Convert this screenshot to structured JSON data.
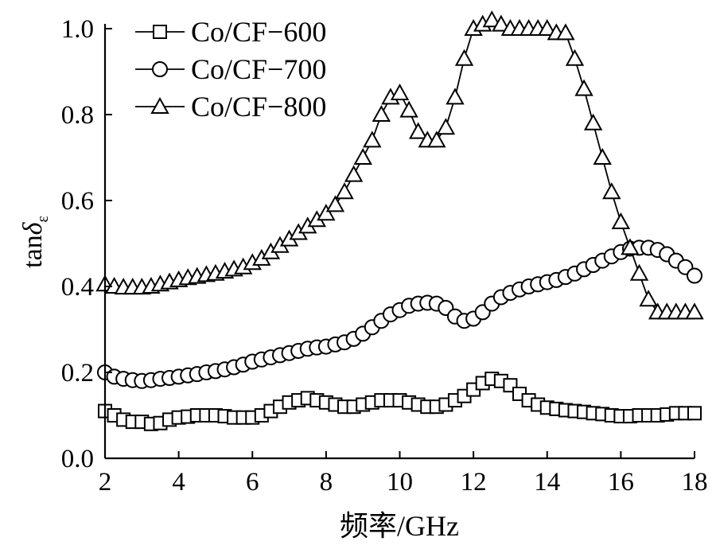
{
  "chart_data": {
    "type": "line",
    "title": "",
    "xlabel": "频率/GHz",
    "ylabel": "tanδε",
    "ylabel_main": "tan",
    "ylabel_symbol": "δ",
    "ylabel_subscript": "ε",
    "xlim": [
      2,
      18
    ],
    "ylim": [
      0.0,
      1.0
    ],
    "xticks": [
      "2",
      "4",
      "6",
      "8",
      "10",
      "12",
      "14",
      "16",
      "18"
    ],
    "yticks": [
      "0.0",
      "0.2",
      "0.4",
      "0.6",
      "0.8",
      "1.0"
    ],
    "grid": false,
    "legend_position": "top-left",
    "series": [
      {
        "name": "Co/CF−600",
        "marker": "square",
        "x": [
          2,
          2.25,
          2.5,
          2.75,
          3,
          3.25,
          3.5,
          3.75,
          4,
          4.25,
          4.5,
          4.75,
          5,
          5.25,
          5.5,
          5.75,
          6,
          6.25,
          6.5,
          6.75,
          7,
          7.25,
          7.5,
          7.75,
          8,
          8.25,
          8.5,
          8.75,
          9,
          9.25,
          9.5,
          9.75,
          10,
          10.25,
          10.5,
          10.75,
          11,
          11.25,
          11.5,
          11.75,
          12,
          12.25,
          12.5,
          12.75,
          13,
          13.25,
          13.5,
          13.75,
          14,
          14.25,
          14.5,
          14.75,
          15,
          15.25,
          15.5,
          15.75,
          16,
          16.25,
          16.5,
          16.75,
          17,
          17.25,
          17.5,
          17.75,
          18
        ],
        "y": [
          0.11,
          0.1,
          0.09,
          0.085,
          0.085,
          0.08,
          0.082,
          0.09,
          0.095,
          0.097,
          0.1,
          0.1,
          0.1,
          0.098,
          0.095,
          0.095,
          0.095,
          0.1,
          0.11,
          0.12,
          0.13,
          0.135,
          0.14,
          0.135,
          0.13,
          0.125,
          0.12,
          0.12,
          0.125,
          0.13,
          0.135,
          0.135,
          0.135,
          0.13,
          0.125,
          0.12,
          0.12,
          0.125,
          0.135,
          0.145,
          0.16,
          0.175,
          0.185,
          0.18,
          0.17,
          0.15,
          0.135,
          0.125,
          0.118,
          0.115,
          0.112,
          0.11,
          0.108,
          0.105,
          0.103,
          0.1,
          0.098,
          0.098,
          0.1,
          0.1,
          0.1,
          0.102,
          0.105,
          0.105,
          0.105
        ]
      },
      {
        "name": "Co/CF−700",
        "marker": "circle",
        "x": [
          2,
          2.25,
          2.5,
          2.75,
          3,
          3.25,
          3.5,
          3.75,
          4,
          4.25,
          4.5,
          4.75,
          5,
          5.25,
          5.5,
          5.75,
          6,
          6.25,
          6.5,
          6.75,
          7,
          7.25,
          7.5,
          7.75,
          8,
          8.25,
          8.5,
          8.75,
          9,
          9.25,
          9.5,
          9.75,
          10,
          10.25,
          10.5,
          10.75,
          11,
          11.25,
          11.5,
          11.75,
          12,
          12.25,
          12.5,
          12.75,
          13,
          13.25,
          13.5,
          13.75,
          14,
          14.25,
          14.5,
          14.75,
          15,
          15.25,
          15.5,
          15.75,
          16,
          16.25,
          16.5,
          16.75,
          17,
          17.25,
          17.5,
          17.75,
          18
        ],
        "y": [
          0.2,
          0.19,
          0.185,
          0.182,
          0.18,
          0.182,
          0.185,
          0.187,
          0.19,
          0.193,
          0.196,
          0.2,
          0.203,
          0.207,
          0.212,
          0.218,
          0.225,
          0.23,
          0.235,
          0.24,
          0.245,
          0.25,
          0.255,
          0.258,
          0.26,
          0.265,
          0.27,
          0.278,
          0.29,
          0.305,
          0.32,
          0.335,
          0.345,
          0.355,
          0.36,
          0.362,
          0.36,
          0.35,
          0.33,
          0.32,
          0.325,
          0.34,
          0.36,
          0.375,
          0.385,
          0.393,
          0.4,
          0.405,
          0.41,
          0.415,
          0.422,
          0.43,
          0.44,
          0.45,
          0.46,
          0.47,
          0.48,
          0.488,
          0.49,
          0.49,
          0.485,
          0.475,
          0.46,
          0.445,
          0.425
        ]
      },
      {
        "name": "Co/CF−800",
        "marker": "triangle",
        "x": [
          2,
          2.25,
          2.5,
          2.75,
          3,
          3.25,
          3.5,
          3.75,
          4,
          4.25,
          4.5,
          4.75,
          5,
          5.25,
          5.5,
          5.75,
          6,
          6.25,
          6.5,
          6.75,
          7,
          7.25,
          7.5,
          7.75,
          8,
          8.25,
          8.5,
          8.75,
          9,
          9.25,
          9.5,
          9.75,
          10,
          10.25,
          10.5,
          10.75,
          11,
          11.25,
          11.5,
          11.75,
          12,
          12.25,
          12.5,
          12.75,
          13,
          13.25,
          13.5,
          13.75,
          14,
          14.25,
          14.5,
          14.75,
          15,
          15.25,
          15.5,
          15.75,
          16,
          16.25,
          16.5,
          16.75,
          17,
          17.25,
          17.5,
          17.75,
          18
        ],
        "y": [
          0.405,
          0.4,
          0.398,
          0.398,
          0.398,
          0.4,
          0.405,
          0.41,
          0.415,
          0.42,
          0.423,
          0.427,
          0.43,
          0.435,
          0.44,
          0.445,
          0.455,
          0.465,
          0.48,
          0.495,
          0.51,
          0.525,
          0.54,
          0.555,
          0.57,
          0.59,
          0.62,
          0.66,
          0.7,
          0.74,
          0.8,
          0.84,
          0.85,
          0.81,
          0.76,
          0.74,
          0.74,
          0.77,
          0.84,
          0.93,
          1.0,
          1.01,
          1.02,
          1.01,
          1.0,
          1.0,
          1.0,
          1.0,
          1.0,
          0.99,
          0.99,
          0.93,
          0.86,
          0.78,
          0.7,
          0.62,
          0.55,
          0.49,
          0.43,
          0.37,
          0.34,
          0.34,
          0.34,
          0.34,
          0.34
        ]
      }
    ]
  }
}
